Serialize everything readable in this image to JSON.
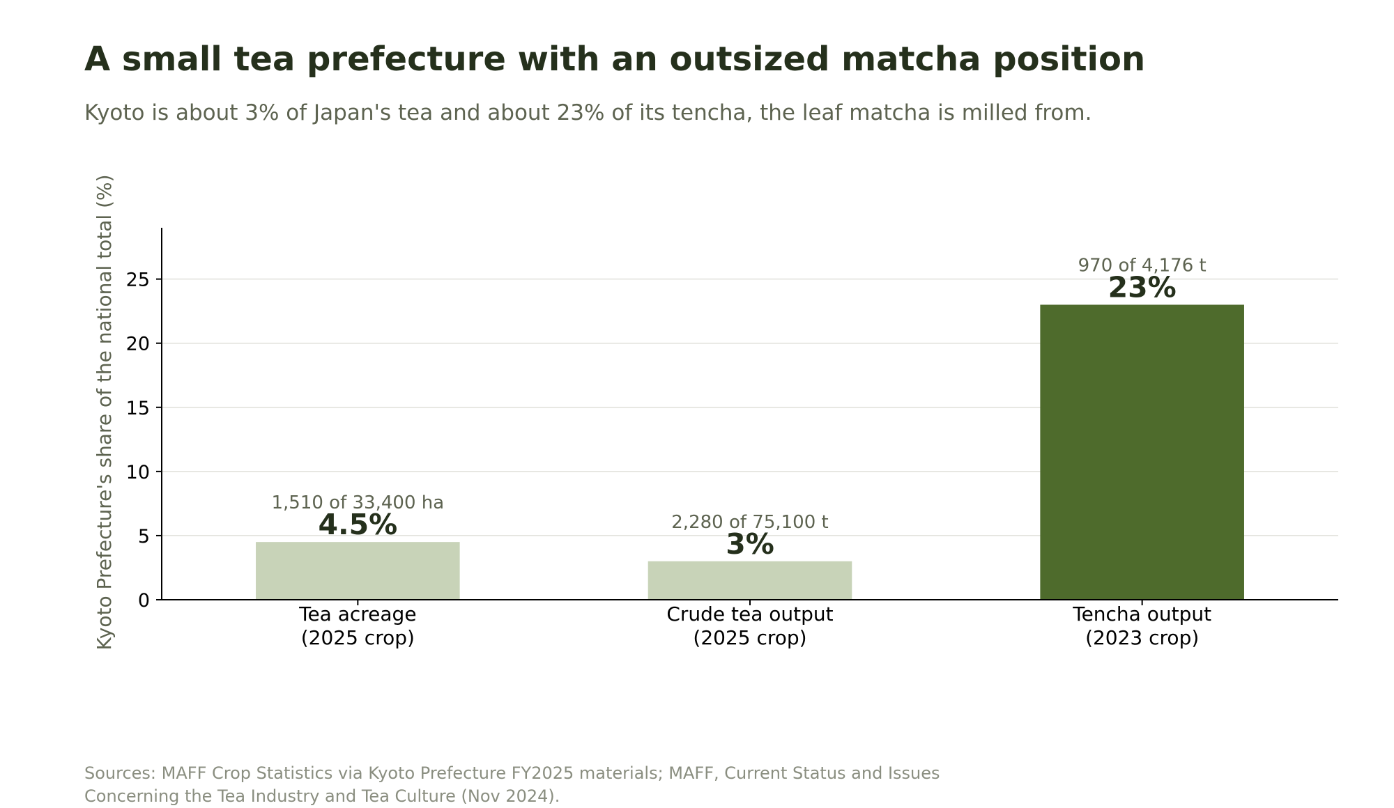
{
  "chart_data": {
    "type": "bar",
    "title": "A small tea prefecture with an outsized matcha position",
    "subtitle": "Kyoto is about 3% of Japan's tea and about 23% of its tencha, the leaf matcha is milled from.",
    "ylabel": "Kyoto Prefecture's share of the national total (%)",
    "xlabel": "",
    "ylim": [
      0,
      29
    ],
    "yticks": [
      0,
      5,
      10,
      15,
      20,
      25
    ],
    "grid": "horizontal",
    "categories": [
      [
        "Tea acreage",
        "(2025 crop)"
      ],
      [
        "Crude tea output",
        "(2025 crop)"
      ],
      [
        "Tencha output",
        "(2023 crop)"
      ]
    ],
    "values": [
      4.5,
      3,
      23
    ],
    "value_labels": [
      "4.5%",
      "3%",
      "23%"
    ],
    "detail_labels": [
      "1,510 of 33,400 ha",
      "2,280 of 75,100 t",
      "970 of 4,176 t"
    ],
    "colors": [
      "#c8d3b8",
      "#c8d3b8",
      "#4e6b2c"
    ],
    "source": [
      "Sources: MAFF Crop Statistics via Kyoto Prefecture FY2025 materials; MAFF, Current Status and Issues",
      "Concerning the Tea Industry and Tea Culture (Nov 2024)."
    ]
  }
}
